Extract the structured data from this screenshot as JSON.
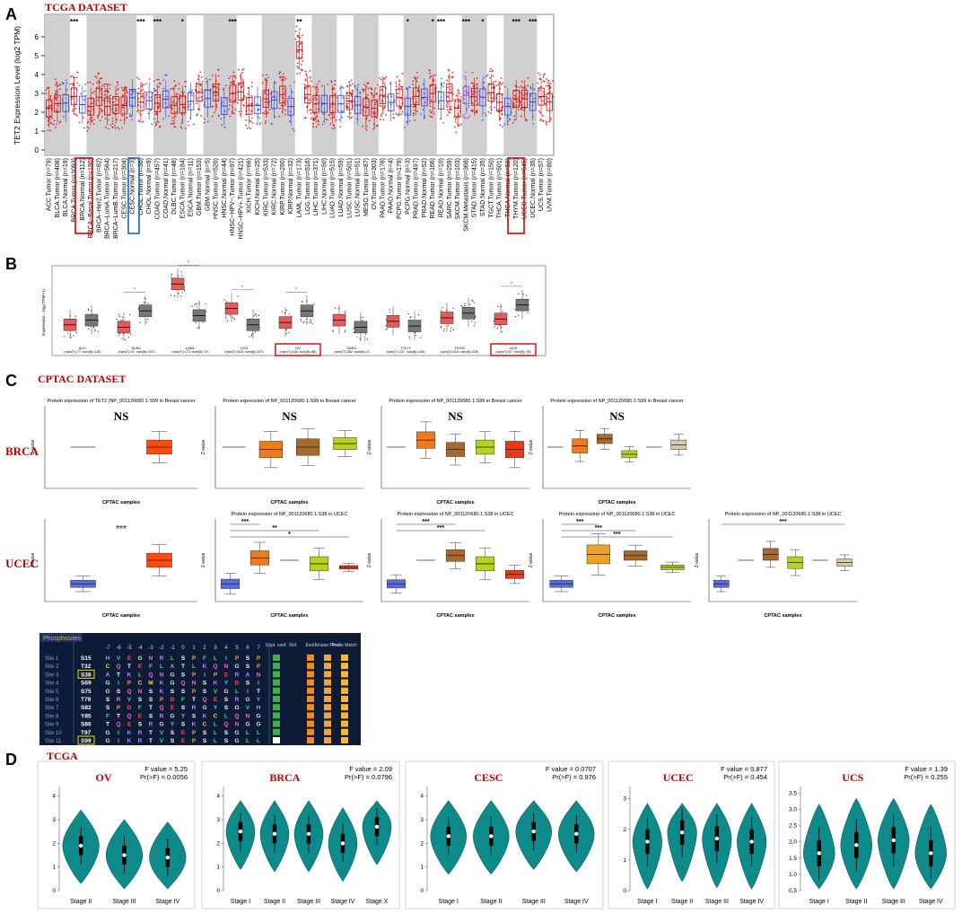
{
  "panels": {
    "A": {
      "letter": "A",
      "title": "TCGA DATASET",
      "ylabel": "TET2 Expression Level (log2 TPM)",
      "yticks": [
        "0",
        "1",
        "2",
        "3",
        "4",
        "5",
        "6"
      ],
      "categories": [
        "ACC.Tumor (n=79)",
        "BLCA.Tumor (n=408)",
        "BLCA.Normal (n=19)",
        "BRCA.Tumor (n=1093)",
        "BRCA.Normal (n=112)",
        "BRCA−Basal.Tumor (n=190)",
        "BRCA−Her2.Tumor (n=82)",
        "BRCA−LumA.Tumor (n=564)",
        "BRCA−LumB.Tumor (n=217)",
        "CESC.Tumor (n=304)",
        "CESC.Normal (n=3)",
        "CHOL.Tumor (n=36)",
        "CHOL.Normal (n=9)",
        "COAD.Tumor (n=457)",
        "COAD.Normal (n=41)",
        "DLBC.Tumor (n=48)",
        "ESCA.Tumor (n=184)",
        "ESCA.Normal (n=11)",
        "GBM.Tumor (n=153)",
        "GBM.Normal (n=5)",
        "HNSC.Tumor (n=520)",
        "HNSC.Normal (n=44)",
        "HNSC−HPV−.Tumor (n=97)",
        "HNSC−HPV+.Tumor (n=421)",
        "KICH.Tumor (n=66)",
        "KICH.Normal (n=25)",
        "KIRC.Tumor (n=533)",
        "KIRC.Normal (n=72)",
        "KIRP.Tumor (n=290)",
        "KIRP.Normal (n=32)",
        "LAML.Tumor (n=173)",
        "LGG.Tumor (n=516)",
        "LIHC.Tumor (n=371)",
        "LIHC.Normal (n=50)",
        "LUAD.Tumor (n=515)",
        "LUAD.Normal (n=59)",
        "LUSC.Tumor (n=501)",
        "LUSC.Normal (n=51)",
        "MESO.Tumor (n=87)",
        "OV.Tumor (n=303)",
        "PAAD.Tumor (n=178)",
        "PAAD.Normal (n=4)",
        "PCPG.Tumor (n=179)",
        "PCPG.Normal (n=3)",
        "PRAD.Tumor (n=497)",
        "PRAD.Normal (n=52)",
        "READ.Tumor (n=166)",
        "READ.Normal (n=10)",
        "SARC.Tumor (n=259)",
        "SKCM.Tumor (n=103)",
        "SKCM.Metastasis (n=368)",
        "STAD.Tumor (n=415)",
        "STAD.Normal (n=35)",
        "TGCT.Tumor (n=150)",
        "THCA.Tumor (n=501)",
        "THCA.Normal (n=59)",
        "THYM.Tumor (n=120)",
        "UCEC.Tumor (n=545)",
        "UCEC.Normal (n=35)",
        "UCS.Tumor (n=57)",
        "UVM.Tumor (n=80)"
      ],
      "star_labels": [
        "***",
        "***",
        "***",
        "*",
        "***",
        "**",
        "*",
        "*",
        "***",
        "***",
        "*",
        "***",
        "***"
      ]
    },
    "B": {
      "letter": "B",
      "ylabel": "Expression - log₂(TPM+1)",
      "groups": [
        {
          "name": "ACC",
          "n": "(num(T)=77; num(N)=128)",
          "tumor": 1.4,
          "normal": 1.8
        },
        {
          "name": "DLBC",
          "n": "(num(T)=47; num(N)=337)",
          "tumor": 1.2,
          "normal": 2.6
        },
        {
          "name": "LAML",
          "n": "(num(T)=173; num(N)=70)",
          "tumor": 4.9,
          "normal": 2.2
        },
        {
          "name": "LGG",
          "n": "(num(T)=518; num(N)=207)",
          "tumor": 2.8,
          "normal": 1.4
        },
        {
          "name": "OV",
          "n": "(num(T)=426; num(N)=88)",
          "tumor": 1.6,
          "normal": 2.6
        },
        {
          "name": "SARC",
          "n": "(num(T)=262; num(N)=2)",
          "tumor": 1.8,
          "normal": 1.2
        },
        {
          "name": "TGCT",
          "n": "(num(T)=137; num(N)=165)",
          "tumor": 1.7,
          "normal": 1.3
        },
        {
          "name": "THYM",
          "n": "(num(T)=118; num(N)=339)",
          "tumor": 2.0,
          "normal": 2.4
        },
        {
          "name": "UCS",
          "n": "(num(T)=57; num(N)=78)",
          "tumor": 1.9,
          "normal": 3.1
        }
      ]
    },
    "C": {
      "letter": "C",
      "title": "CPTAC DATASET",
      "brca_label": "BRCA",
      "ucec_label": "UCEC",
      "zvalue": "Z-value",
      "cptac_samples": "CPTAC samples",
      "ns": "NS",
      "brca_titles": [
        "Protein expression of TET2 (NP_001120680.1:S99 in Breast cancer",
        "Protein expression of NP_001120680.1:S99 in Breast cancer",
        "Protein expression of NP_001120680.1:S99 in Breast cancer",
        "Protein expression of NP_001120680.1:S99 in Breast cancer"
      ],
      "ucec_titles": [
        "Protein expression of NP_001120680.1:S38 in UCEC",
        "Protein expression of NP_001120680.1:S38 in UCEC",
        "Protein expression of NP_001120680.1:S38 in UCEC",
        "Protein expression of NP_001120680.1:S38 in UCEC"
      ],
      "stars3": "***",
      "stars2": "**",
      "stars1": "*"
    },
    "phospho": {
      "header": "Phosphosites",
      "positions": [
        "-7",
        "-6",
        "-5",
        "-4",
        "-3",
        "-2",
        "-1",
        "0",
        "1",
        "2",
        "3",
        "4",
        "5",
        "6",
        "7"
      ],
      "col_heads": [
        "Expt. conf.",
        "Ref.",
        "Evol.",
        "Kinase Pred.",
        "P-site Match"
      ],
      "rows": [
        {
          "site": "Site 1",
          "pos": "S15",
          "seq": "HVEGNRLSPFLIPS P"
        },
        {
          "site": "Site 2",
          "pos": "T32",
          "seq": "CQTEFLATLKQNGSP"
        },
        {
          "site": "Site 3",
          "pos": "S38",
          "seq": "ATKLQNGSPIPERAN"
        },
        {
          "site": "Site 4",
          "pos": "S69",
          "seq": "GIPCMKGQNSKYDSI"
        },
        {
          "site": "Site 5",
          "pos": "S75",
          "seq": "GSQNSKSSPSVGLIT"
        },
        {
          "site": "Site 6",
          "pos": "T79",
          "seq": "SRVSSPDFTQESRGY"
        },
        {
          "site": "Site 7",
          "pos": "S82",
          "seq": "SPDFTQESRGYSGVH"
        },
        {
          "site": "Site 8",
          "pos": "Y85",
          "seq": "FTQESRGYSKCLQNG"
        },
        {
          "site": "Site 9",
          "pos": "S86",
          "seq": "TQESRGYSKCLQNGG"
        },
        {
          "site": "Site 10",
          "pos": "T97",
          "seq": "GIKRTVSEPSLSGLL"
        },
        {
          "site": "Site 11",
          "pos": "S99",
          "seq": "GIKRTVSEPSLSGLL"
        }
      ]
    },
    "D": {
      "letter": "D",
      "title": "TCGA",
      "plots": [
        {
          "name": "OV",
          "f": "F value = 5.25",
          "p": "Pr(>F) = 0.0056",
          "stages": [
            "Stage II",
            "Stage III",
            "Stage IV"
          ],
          "yticks": [
            "0",
            "1",
            "2",
            "3",
            "4"
          ],
          "medians": [
            1.9,
            1.5,
            1.4
          ]
        },
        {
          "name": "BRCA",
          "f": "F value = 2.09",
          "p": "Pr(>F) = 0.0796",
          "stages": [
            "Stage I",
            "Stage II",
            "Stage III",
            "Stage IV",
            "Stage X"
          ],
          "yticks": [
            "0",
            "1",
            "2",
            "3",
            "4"
          ],
          "medians": [
            2.5,
            2.4,
            2.4,
            2.0,
            2.7
          ]
        },
        {
          "name": "CESC",
          "f": "F value = 0.0707",
          "p": "Pr(>F) = 0.976",
          "stages": [
            "Stage I",
            "Stage II",
            "Stage III",
            "Stage IV"
          ],
          "yticks": [
            "0",
            "1",
            "2",
            "3",
            "4"
          ],
          "medians": [
            2.3,
            2.3,
            2.5,
            2.4
          ]
        },
        {
          "name": "UCEC",
          "f": "F value = 0.877",
          "p": "Pr(>F) = 0.454",
          "stages": [
            "Stage I",
            "Stage II",
            "Stage III",
            "Stage IV"
          ],
          "yticks": [
            "0",
            "1",
            "2",
            "3"
          ],
          "medians": [
            1.6,
            1.9,
            1.7,
            1.6
          ]
        },
        {
          "name": "UCS",
          "f": "F value = 1.39",
          "p": "Pr(>F) = 0.255",
          "stages": [
            "Stage I",
            "Stage II",
            "Stage III",
            "Stage IV"
          ],
          "yticks": [
            "0.5",
            "1.0",
            "1.5",
            "2.0",
            "2.5",
            "3.0",
            "3.5"
          ],
          "medians": [
            1.65,
            1.9,
            2.05,
            1.65
          ]
        }
      ]
    }
  },
  "chart_data": [
    {
      "type": "box",
      "title": "TCGA DATASET",
      "ylabel": "TET2 Expression Level (log2 TPM)",
      "ylim": [
        0,
        7
      ]
    },
    {
      "type": "box",
      "ylabel": "Expression - log₂(TPM+1)",
      "categories": [
        "ACC",
        "DLBC",
        "LAML",
        "LGG",
        "OV",
        "SARC",
        "TGCT",
        "THYM",
        "UCS"
      ],
      "series": [
        {
          "name": "Tumor",
          "values": [
            1.4,
            1.2,
            4.9,
            2.8,
            1.6,
            1.8,
            1.7,
            2.0,
            1.9
          ]
        },
        {
          "name": "Normal",
          "values": [
            1.8,
            2.6,
            2.2,
            1.4,
            2.6,
            1.2,
            1.3,
            2.4,
            3.1
          ]
        }
      ]
    },
    {
      "type": "violin",
      "title": "OV",
      "categories": [
        "Stage II",
        "Stage III",
        "Stage IV"
      ],
      "values": [
        1.9,
        1.5,
        1.4
      ]
    },
    {
      "type": "violin",
      "title": "BRCA",
      "categories": [
        "Stage I",
        "Stage II",
        "Stage III",
        "Stage IV",
        "Stage X"
      ],
      "values": [
        2.5,
        2.4,
        2.4,
        2.0,
        2.7
      ]
    },
    {
      "type": "violin",
      "title": "CESC",
      "categories": [
        "Stage I",
        "Stage II",
        "Stage III",
        "Stage IV"
      ],
      "values": [
        2.3,
        2.3,
        2.5,
        2.4
      ]
    },
    {
      "type": "violin",
      "title": "UCEC",
      "categories": [
        "Stage I",
        "Stage II",
        "Stage III",
        "Stage IV"
      ],
      "values": [
        1.6,
        1.9,
        1.7,
        1.6
      ]
    },
    {
      "type": "violin",
      "title": "UCS",
      "categories": [
        "Stage I",
        "Stage II",
        "Stage III",
        "Stage IV"
      ],
      "values": [
        1.65,
        1.9,
        2.05,
        1.65
      ]
    }
  ]
}
